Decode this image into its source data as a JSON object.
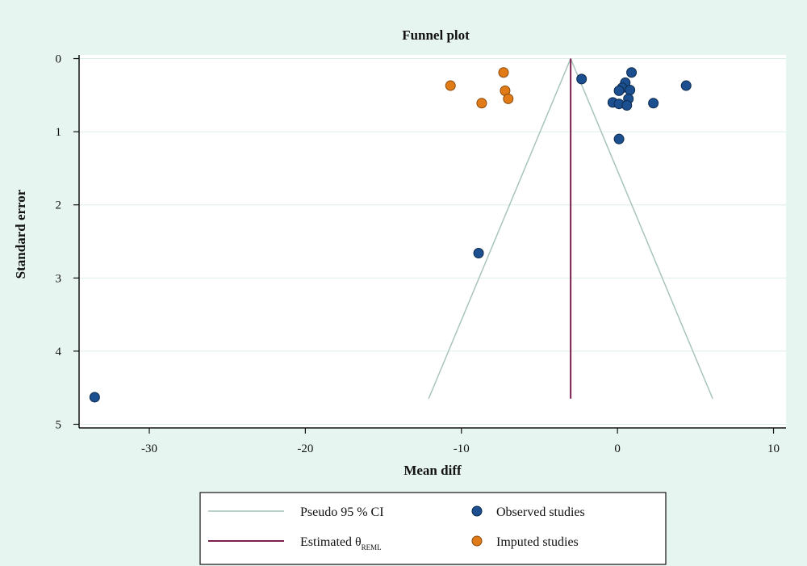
{
  "chart_data": {
    "type": "scatter",
    "title": "Funnel plot",
    "xlabel": "Mean diff",
    "ylabel": "Standard error",
    "xlim": [
      -34.5,
      10.8
    ],
    "ylim": [
      -0.05,
      5.05
    ],
    "y_inverted": true,
    "x_ticks": [
      -30,
      -20,
      -10,
      0,
      10
    ],
    "y_ticks": [
      0,
      1,
      2,
      3,
      4,
      5
    ],
    "grid": "horizontal",
    "estimate": {
      "x": -3.0,
      "se_max": 4.65
    },
    "pseudo_ci": {
      "center": -3.0,
      "se_max": 4.65,
      "left_at_max": -12.1,
      "right_at_max": 6.1
    },
    "series": [
      {
        "name": "Observed studies",
        "color": "#1b4f8f",
        "points": [
          {
            "x": 0.9,
            "y": 0.19
          },
          {
            "x": -2.3,
            "y": 0.28
          },
          {
            "x": 0.5,
            "y": 0.33
          },
          {
            "x": 4.4,
            "y": 0.37
          },
          {
            "x": 0.3,
            "y": 0.4
          },
          {
            "x": 0.1,
            "y": 0.44
          },
          {
            "x": 0.8,
            "y": 0.43
          },
          {
            "x": 0.7,
            "y": 0.55
          },
          {
            "x": -0.3,
            "y": 0.6
          },
          {
            "x": 0.1,
            "y": 0.62
          },
          {
            "x": 0.6,
            "y": 0.64
          },
          {
            "x": 2.3,
            "y": 0.61
          },
          {
            "x": 0.1,
            "y": 1.1
          },
          {
            "x": -8.9,
            "y": 2.66
          },
          {
            "x": -33.5,
            "y": 4.63
          }
        ]
      },
      {
        "name": "Imputed studies",
        "color": "#e07b17",
        "points": [
          {
            "x": -7.3,
            "y": 0.19
          },
          {
            "x": -10.7,
            "y": 0.37
          },
          {
            "x": -7.2,
            "y": 0.44
          },
          {
            "x": -7.0,
            "y": 0.55
          },
          {
            "x": -8.7,
            "y": 0.61
          }
        ]
      }
    ],
    "legend": {
      "ci_label": "Pseudo 95 % CI",
      "estimate_label": "Estimated θ",
      "estimate_sub": "REML",
      "observed_label": "Observed studies",
      "imputed_label": "Imputed studies",
      "ci_color": "#a9c4bc",
      "estimate_color": "#7b1f4f"
    }
  }
}
